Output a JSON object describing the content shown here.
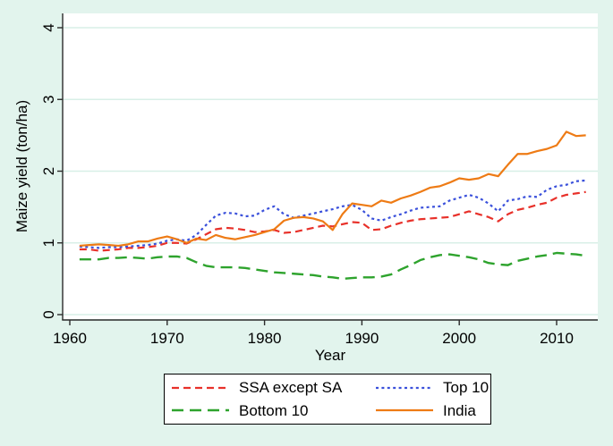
{
  "figure": {
    "background_color": "#e2f4ed",
    "plot_background": "#ffffff",
    "gridline_color": "#d8efe7",
    "axis_color": "#2b2b2b",
    "text_color": "#000000"
  },
  "chart_data": {
    "type": "line",
    "title": "",
    "xlabel": "Year",
    "ylabel": "Maize yield (ton/ha)",
    "xticks": [
      1960,
      1970,
      1980,
      1990,
      2000,
      2010
    ],
    "yticks": [
      0,
      1,
      2,
      3,
      4
    ],
    "xlim": [
      1959.3,
      2014.2
    ],
    "ylim": [
      0,
      4
    ],
    "grid": "horizontal",
    "legend_position": "bottom-center",
    "x": [
      1961,
      1962,
      1963,
      1964,
      1965,
      1966,
      1967,
      1968,
      1969,
      1970,
      1971,
      1972,
      1973,
      1974,
      1975,
      1976,
      1977,
      1978,
      1979,
      1980,
      1981,
      1982,
      1983,
      1984,
      1985,
      1986,
      1987,
      1988,
      1989,
      1990,
      1991,
      1992,
      1993,
      1994,
      1995,
      1996,
      1997,
      1998,
      1999,
      2000,
      2001,
      2002,
      2003,
      2004,
      2005,
      2006,
      2007,
      2008,
      2009,
      2010,
      2011,
      2012,
      2013
    ],
    "series": [
      {
        "name": "SSA except SA",
        "color": "#e8312a",
        "dash": "8 5",
        "width": 2.2,
        "values": [
          0.91,
          0.91,
          0.89,
          0.9,
          0.91,
          0.93,
          0.93,
          0.94,
          0.96,
          1.0,
          1.0,
          0.99,
          1.05,
          1.12,
          1.19,
          1.21,
          1.2,
          1.18,
          1.15,
          1.16,
          1.18,
          1.14,
          1.15,
          1.18,
          1.21,
          1.24,
          1.23,
          1.26,
          1.29,
          1.28,
          1.18,
          1.19,
          1.24,
          1.28,
          1.31,
          1.33,
          1.34,
          1.35,
          1.36,
          1.4,
          1.44,
          1.4,
          1.36,
          1.3,
          1.4,
          1.46,
          1.49,
          1.53,
          1.56,
          1.63,
          1.67,
          1.69,
          1.71
        ]
      },
      {
        "name": "Top 10",
        "color": "#3a50db",
        "dash": "3 3.4",
        "width": 2.2,
        "values": [
          0.95,
          0.94,
          0.93,
          0.94,
          0.94,
          0.95,
          0.96,
          0.97,
          0.99,
          1.03,
          1.05,
          1.03,
          1.11,
          1.25,
          1.38,
          1.42,
          1.41,
          1.37,
          1.38,
          1.46,
          1.51,
          1.4,
          1.35,
          1.38,
          1.41,
          1.44,
          1.47,
          1.51,
          1.53,
          1.46,
          1.34,
          1.31,
          1.36,
          1.4,
          1.45,
          1.49,
          1.5,
          1.51,
          1.59,
          1.63,
          1.67,
          1.63,
          1.55,
          1.44,
          1.59,
          1.61,
          1.65,
          1.64,
          1.74,
          1.79,
          1.81,
          1.86,
          1.87
        ]
      },
      {
        "name": "Bottom 10",
        "color": "#2ea32d",
        "dash": "13 7",
        "width": 2.4,
        "values": [
          0.77,
          0.77,
          0.77,
          0.79,
          0.79,
          0.8,
          0.79,
          0.78,
          0.8,
          0.81,
          0.81,
          0.79,
          0.73,
          0.68,
          0.66,
          0.66,
          0.66,
          0.65,
          0.63,
          0.61,
          0.59,
          0.58,
          0.57,
          0.56,
          0.55,
          0.53,
          0.52,
          0.5,
          0.51,
          0.52,
          0.52,
          0.53,
          0.56,
          0.63,
          0.69,
          0.76,
          0.8,
          0.83,
          0.84,
          0.82,
          0.8,
          0.77,
          0.72,
          0.7,
          0.69,
          0.75,
          0.78,
          0.81,
          0.83,
          0.86,
          0.85,
          0.84,
          0.82
        ]
      },
      {
        "name": "India",
        "color": "#ee7b15",
        "dash": "",
        "width": 2.2,
        "values": [
          0.96,
          0.97,
          0.98,
          0.97,
          0.96,
          0.98,
          1.02,
          1.02,
          1.06,
          1.09,
          1.05,
          1.0,
          1.06,
          1.04,
          1.11,
          1.07,
          1.05,
          1.08,
          1.11,
          1.15,
          1.19,
          1.31,
          1.35,
          1.36,
          1.34,
          1.3,
          1.18,
          1.4,
          1.55,
          1.53,
          1.51,
          1.59,
          1.56,
          1.62,
          1.66,
          1.71,
          1.77,
          1.79,
          1.84,
          1.9,
          1.88,
          1.9,
          1.96,
          1.93,
          2.09,
          2.24,
          2.24,
          2.28,
          2.31,
          2.36,
          2.55,
          2.49,
          2.5
        ]
      }
    ]
  },
  "legend": {
    "items": [
      {
        "label": "SSA except SA",
        "series": 0
      },
      {
        "label": "Top 10",
        "series": 1
      },
      {
        "label": "Bottom 10",
        "series": 2
      },
      {
        "label": "India",
        "series": 3
      }
    ]
  }
}
